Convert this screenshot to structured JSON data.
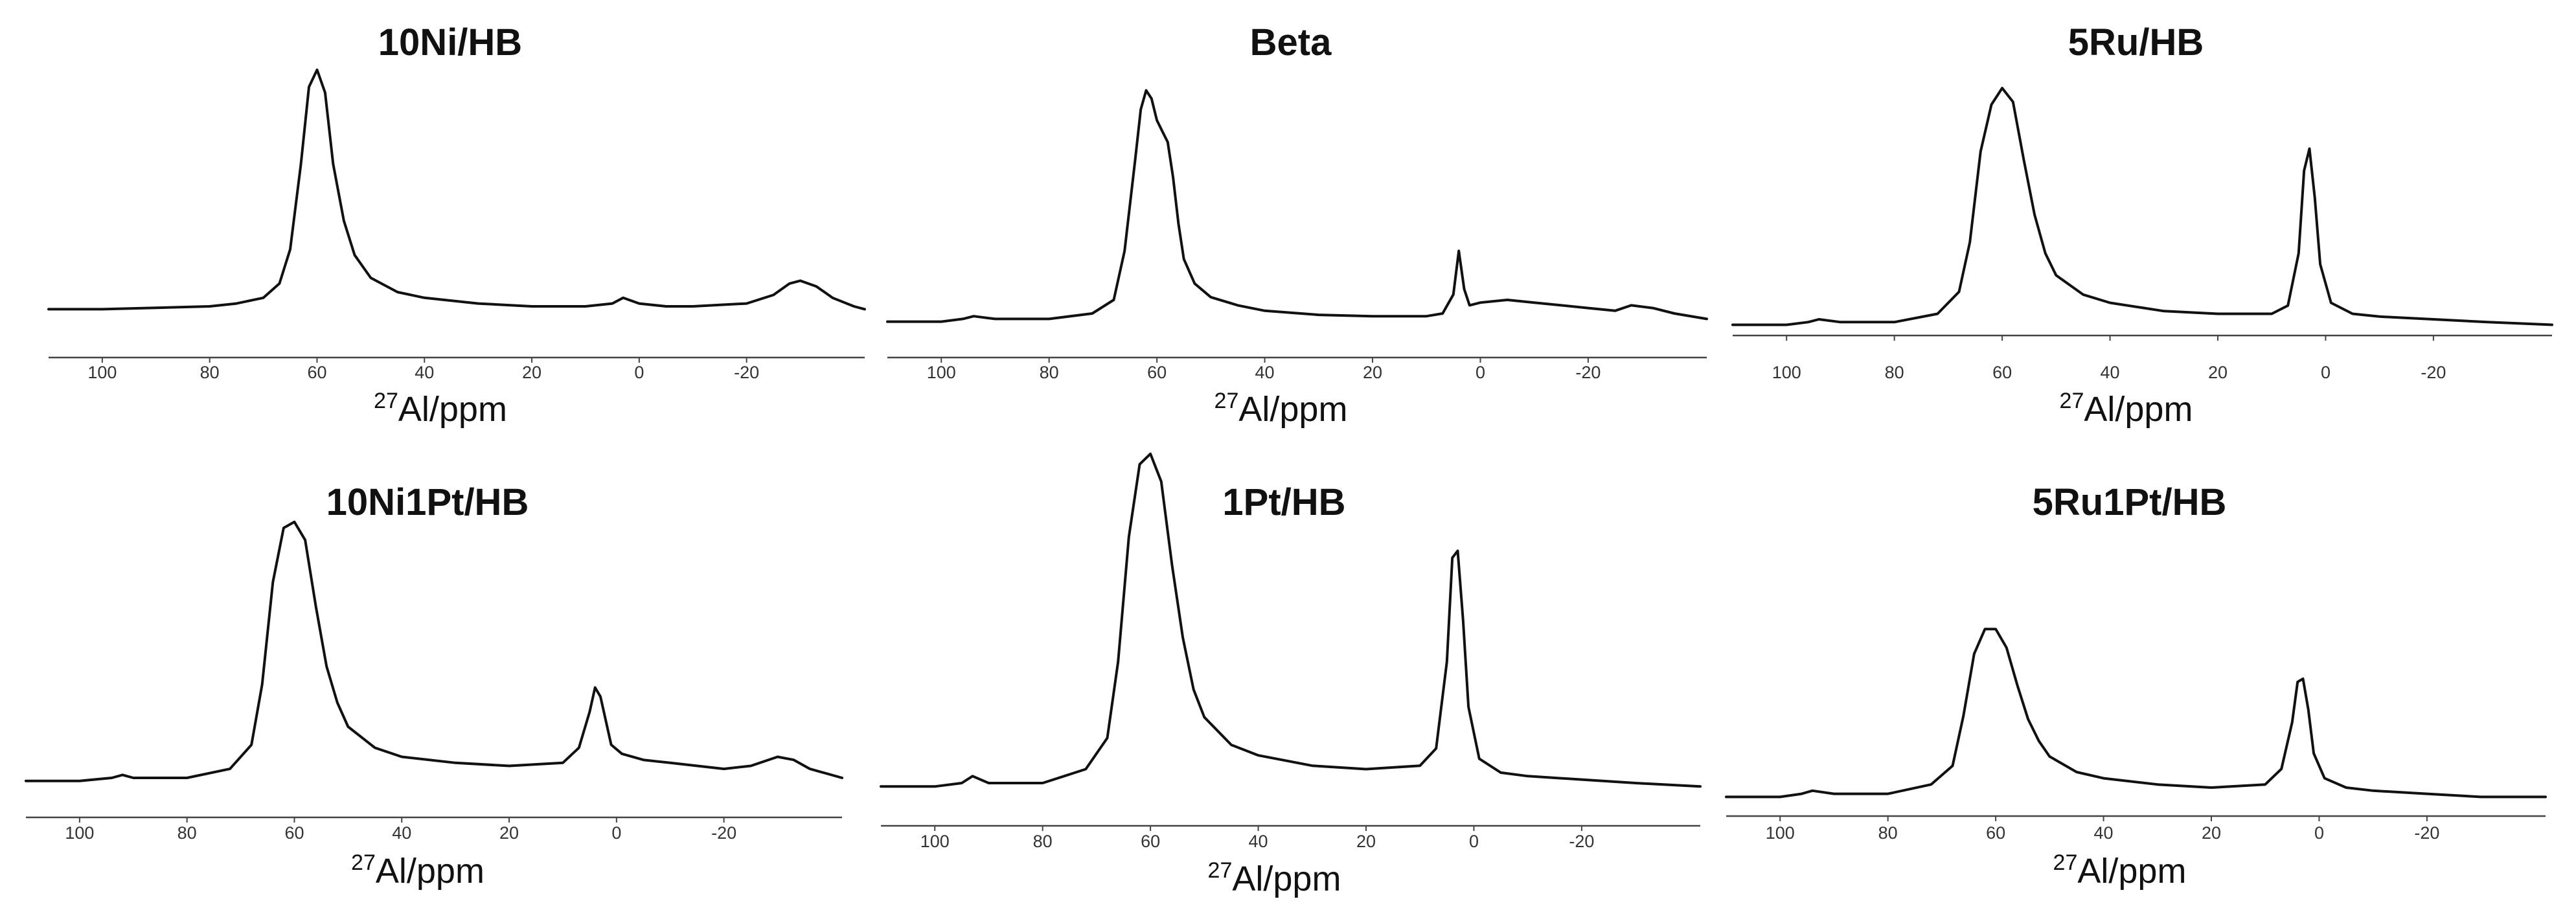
{
  "figure": {
    "x_label_superscript": "27",
    "x_label_text": "Al/ppm"
  },
  "chart_data": [
    {
      "type": "line",
      "title": "10Ni/HB",
      "xlabel": "27Al/ppm",
      "x_reversed": true,
      "xlim": [
        110,
        -42
      ],
      "xticks": [
        100,
        80,
        60,
        40,
        20,
        0,
        -20
      ],
      "xtick_labels": [
        "100",
        "80",
        "60",
        "40",
        "20",
        "0",
        "-20"
      ],
      "ylim": [
        0,
        100
      ],
      "y_axis_shown": false,
      "grid": false,
      "series": [
        {
          "x": [
            110,
            100,
            90,
            80,
            75,
            70,
            67,
            65,
            63,
            61.5,
            60,
            58.5,
            57,
            55,
            53,
            50,
            45,
            40,
            30,
            20,
            10,
            5,
            3,
            0,
            -5,
            -10,
            -15,
            -20,
            -25,
            -28,
            -30,
            -33,
            -36,
            -40,
            -42
          ],
          "y": [
            4,
            4,
            4.5,
            5,
            6,
            8,
            13,
            25,
            55,
            82,
            88,
            80,
            55,
            35,
            23,
            15,
            10,
            8,
            6,
            5,
            5,
            6,
            8,
            6,
            5,
            5,
            5.5,
            6,
            9,
            13,
            14,
            12,
            8,
            5,
            4
          ]
        }
      ]
    },
    {
      "type": "line",
      "title": "Beta",
      "xlabel": "27Al/ppm",
      "x_reversed": true,
      "xlim": [
        110,
        -42
      ],
      "xticks": [
        100,
        80,
        60,
        40,
        20,
        0,
        -20
      ],
      "xtick_labels": [
        "100",
        "80",
        "60",
        "40",
        "20",
        "0",
        "-20"
      ],
      "ylim": [
        0,
        100
      ],
      "y_axis_shown": false,
      "grid": false,
      "series": [
        {
          "x": [
            110,
            100,
            96,
            94,
            90,
            80,
            72,
            68,
            66,
            64,
            63,
            62,
            61,
            60,
            59,
            58,
            57,
            56,
            55,
            53,
            50,
            45,
            40,
            30,
            20,
            10,
            7,
            5,
            4,
            3,
            2,
            0,
            -5,
            -10,
            -15,
            -20,
            -25,
            -28,
            -32,
            -36,
            -42
          ],
          "y": [
            2,
            2,
            3,
            4,
            3,
            3,
            5,
            10,
            28,
            62,
            80,
            87,
            84,
            76,
            72,
            68,
            55,
            38,
            25,
            16,
            11,
            8,
            6,
            4.5,
            4,
            4,
            5,
            12,
            28,
            14,
            8,
            9,
            10,
            9,
            8,
            7,
            6,
            8,
            7,
            5,
            3
          ]
        }
      ]
    },
    {
      "type": "line",
      "title": "5Ru/HB",
      "xlabel": "27Al/ppm",
      "x_reversed": true,
      "xlim": [
        110,
        -42
      ],
      "xticks": [
        100,
        80,
        60,
        40,
        20,
        0,
        -20
      ],
      "xtick_labels": [
        "100",
        "80",
        "60",
        "40",
        "20",
        "0",
        "-20"
      ],
      "ylim": [
        0,
        100
      ],
      "y_axis_shown": false,
      "grid": false,
      "series": [
        {
          "x": [
            110,
            100,
            96,
            94,
            90,
            80,
            72,
            68,
            66,
            64,
            62,
            60,
            58,
            56,
            54,
            52,
            50,
            45,
            40,
            30,
            20,
            10,
            7,
            5,
            4,
            3,
            2,
            1,
            -1,
            -5,
            -10,
            -20,
            -30,
            -42
          ],
          "y": [
            2,
            2,
            3,
            4,
            3,
            3,
            6,
            14,
            32,
            65,
            82,
            88,
            83,
            62,
            42,
            28,
            20,
            13,
            10,
            7,
            6,
            6,
            9,
            28,
            58,
            66,
            48,
            24,
            10,
            6,
            5,
            4,
            3,
            2
          ]
        }
      ]
    },
    {
      "type": "line",
      "title": "10Ni1Pt/HB",
      "xlabel": "27Al/ppm",
      "x_reversed": true,
      "xlim": [
        110,
        -42
      ],
      "xticks": [
        100,
        80,
        60,
        40,
        20,
        0,
        -20
      ],
      "xtick_labels": [
        "100",
        "80",
        "60",
        "40",
        "20",
        "0",
        "-20"
      ],
      "ylim": [
        0,
        100
      ],
      "y_axis_shown": false,
      "grid": false,
      "series": [
        {
          "x": [
            110,
            100,
            94,
            92,
            90,
            80,
            72,
            68,
            66,
            64,
            62,
            60,
            58,
            56,
            54,
            52,
            50,
            45,
            40,
            30,
            20,
            10,
            7,
            5,
            4,
            3,
            2,
            1,
            -1,
            -5,
            -10,
            -20,
            -25,
            -30,
            -33,
            -36,
            -42
          ],
          "y": [
            2,
            2,
            3,
            4,
            3,
            3,
            6,
            14,
            34,
            68,
            86,
            88,
            82,
            60,
            40,
            28,
            20,
            13,
            10,
            8,
            7,
            8,
            13,
            25,
            33,
            30,
            22,
            14,
            11,
            9,
            8,
            6,
            7,
            10,
            9,
            6,
            3
          ]
        }
      ]
    },
    {
      "type": "line",
      "title": "1Pt/HB",
      "xlabel": "27Al/ppm",
      "x_reversed": true,
      "xlim": [
        110,
        -42
      ],
      "xticks": [
        100,
        80,
        60,
        40,
        20,
        0,
        -20
      ],
      "xtick_labels": [
        "100",
        "80",
        "60",
        "40",
        "20",
        "0",
        "-20"
      ],
      "ylim": [
        0,
        100
      ],
      "y_axis_shown": false,
      "grid": false,
      "series": [
        {
          "x": [
            110,
            100,
            95,
            93,
            90,
            80,
            72,
            68,
            66,
            64,
            62,
            60,
            58,
            56,
            54,
            52,
            50,
            45,
            40,
            30,
            20,
            10,
            7,
            5,
            4,
            3,
            2,
            1,
            -1,
            -5,
            -10,
            -20,
            -30,
            -42
          ],
          "y": [
            2,
            2,
            3,
            5,
            3,
            3,
            7,
            16,
            38,
            74,
            95,
            98,
            90,
            66,
            45,
            30,
            22,
            14,
            11,
            8,
            7,
            8,
            13,
            38,
            68,
            70,
            50,
            25,
            10,
            6,
            5,
            4,
            3,
            2
          ]
        }
      ]
    },
    {
      "type": "line",
      "title": "5Ru1Pt/HB",
      "xlabel": "27Al/ppm",
      "x_reversed": true,
      "xlim": [
        110,
        -42
      ],
      "xticks": [
        100,
        80,
        60,
        40,
        20,
        0,
        -20
      ],
      "xtick_labels": [
        "100",
        "80",
        "60",
        "40",
        "20",
        "0",
        "-20"
      ],
      "ylim": [
        0,
        100
      ],
      "y_axis_shown": false,
      "grid": false,
      "series": [
        {
          "x": [
            110,
            100,
            96,
            94,
            90,
            80,
            72,
            68,
            66,
            64,
            62,
            60,
            58,
            56,
            54,
            52,
            50,
            45,
            40,
            30,
            20,
            10,
            7,
            5,
            4,
            3,
            2,
            1,
            -1,
            -5,
            -10,
            -20,
            -30,
            -42
          ],
          "y": [
            2,
            2,
            3,
            4,
            3,
            3,
            6,
            12,
            28,
            48,
            56,
            56,
            50,
            38,
            27,
            20,
            15,
            10,
            8,
            6,
            5,
            6,
            11,
            26,
            39,
            40,
            30,
            16,
            8,
            5,
            4,
            3,
            2,
            2
          ]
        }
      ]
    }
  ]
}
